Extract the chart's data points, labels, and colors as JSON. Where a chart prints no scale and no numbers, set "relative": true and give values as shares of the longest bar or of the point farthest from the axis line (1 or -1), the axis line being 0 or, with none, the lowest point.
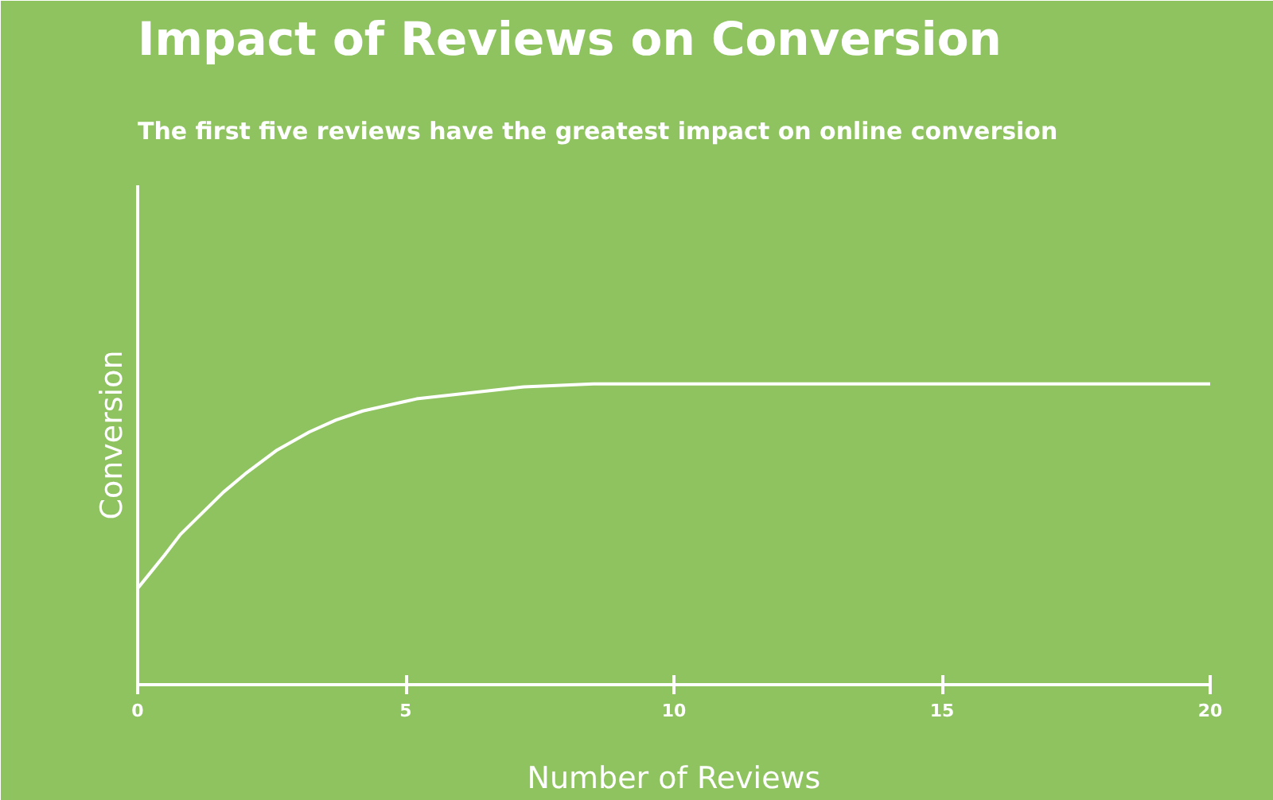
{
  "chart_data": {
    "type": "line",
    "title": "Impact of Reviews on Conversion",
    "subtitle": "The first five reviews have the greatest impact on online conversion",
    "xlabel": "Number of Reviews",
    "ylabel": "Conversion",
    "relative": true,
    "x": [
      0,
      0.25,
      0.5,
      0.8,
      1.2,
      1.6,
      2,
      2.6,
      3.2,
      3.7,
      4.2,
      5.2,
      6.2,
      7.2,
      8.5,
      10,
      15,
      20
    ],
    "series": [
      {
        "color": "#ffffff",
        "values": [
          0.32,
          0.375,
          0.43,
          0.5,
          0.57,
          0.64,
          0.7,
          0.78,
          0.84,
          0.88,
          0.91,
          0.95,
          0.97,
          0.99,
          1,
          1,
          1,
          1
        ]
      }
    ],
    "xlim": [
      0,
      20
    ],
    "xticks": [
      0,
      5,
      10,
      15,
      20
    ],
    "grid": false,
    "marker": "none",
    "line_style": "solid"
  }
}
